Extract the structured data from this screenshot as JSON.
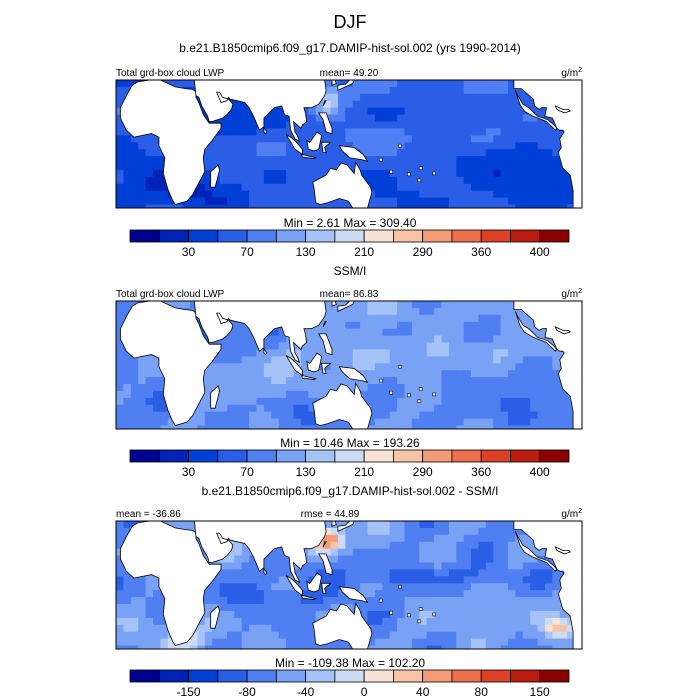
{
  "figure": {
    "season": "DJF",
    "title": "b.e21.B1850cmip6.f09_g17.DAMIP-hist-sol.002 (yrs 1990-2014)",
    "diff_title": "b.e21.B1850cmip6.f09_g17.DAMIP-hist-sol.002 - SSM/I"
  },
  "colors": {
    "abs_scale": [
      "#00008f",
      "#0022b8",
      "#0040d6",
      "#2a5ee6",
      "#4f7ff0",
      "#79a2f5",
      "#a6c3f7",
      "#cddcf5",
      "#f8e2d6",
      "#f7c3a6",
      "#f39c78",
      "#ec704d",
      "#dd4128",
      "#bb1c10",
      "#8a0000"
    ],
    "diff_scale": [
      "#00008f",
      "#0022b8",
      "#0040d6",
      "#2a5ee6",
      "#4f7ff0",
      "#79a2f5",
      "#a6c3f7",
      "#cddcf5",
      "#f8e2d6",
      "#f7c3a6",
      "#f39c78",
      "#ec704d",
      "#dd4128",
      "#bb1c10",
      "#8a0000"
    ],
    "land": "#ffffff",
    "coast": "#000000"
  },
  "chart_data": [
    {
      "type": "heatmap",
      "title": "",
      "left_label": "Total grd-box cloud LWP",
      "center_label": "mean=  49.20",
      "units": "g/m",
      "units_sup": "2",
      "minmax": "Min =   2.61 Max = 309.40",
      "colorbar_ticks": [
        "30",
        "70",
        "130",
        "210",
        "290",
        "360",
        "400"
      ],
      "field_range": [
        2.61,
        309.4
      ],
      "pattern": "model"
    },
    {
      "type": "heatmap",
      "title": "SSM/I",
      "left_label": "Total grd-box cloud LWP",
      "center_label": "mean=  86.83",
      "units": "g/m",
      "units_sup": "2",
      "minmax": "Min =  10.46 Max = 193.26",
      "colorbar_ticks": [
        "30",
        "70",
        "130",
        "210",
        "290",
        "360",
        "400"
      ],
      "field_range": [
        10.46,
        193.26
      ],
      "pattern": "obs"
    },
    {
      "type": "heatmap",
      "title": "b.e21.B1850cmip6.f09_g17.DAMIP-hist-sol.002 - SSM/I",
      "left_label": "mean = -36.86",
      "center_label": "rmse =  44.89",
      "units": "g/m",
      "units_sup": "2",
      "minmax": "Min = -109.38 Max = 102.20",
      "colorbar_ticks": [
        "-150",
        "-80",
        "-40",
        "0",
        "40",
        "80",
        "150"
      ],
      "field_range": [
        -109.38,
        102.2
      ],
      "pattern": "diff"
    }
  ]
}
